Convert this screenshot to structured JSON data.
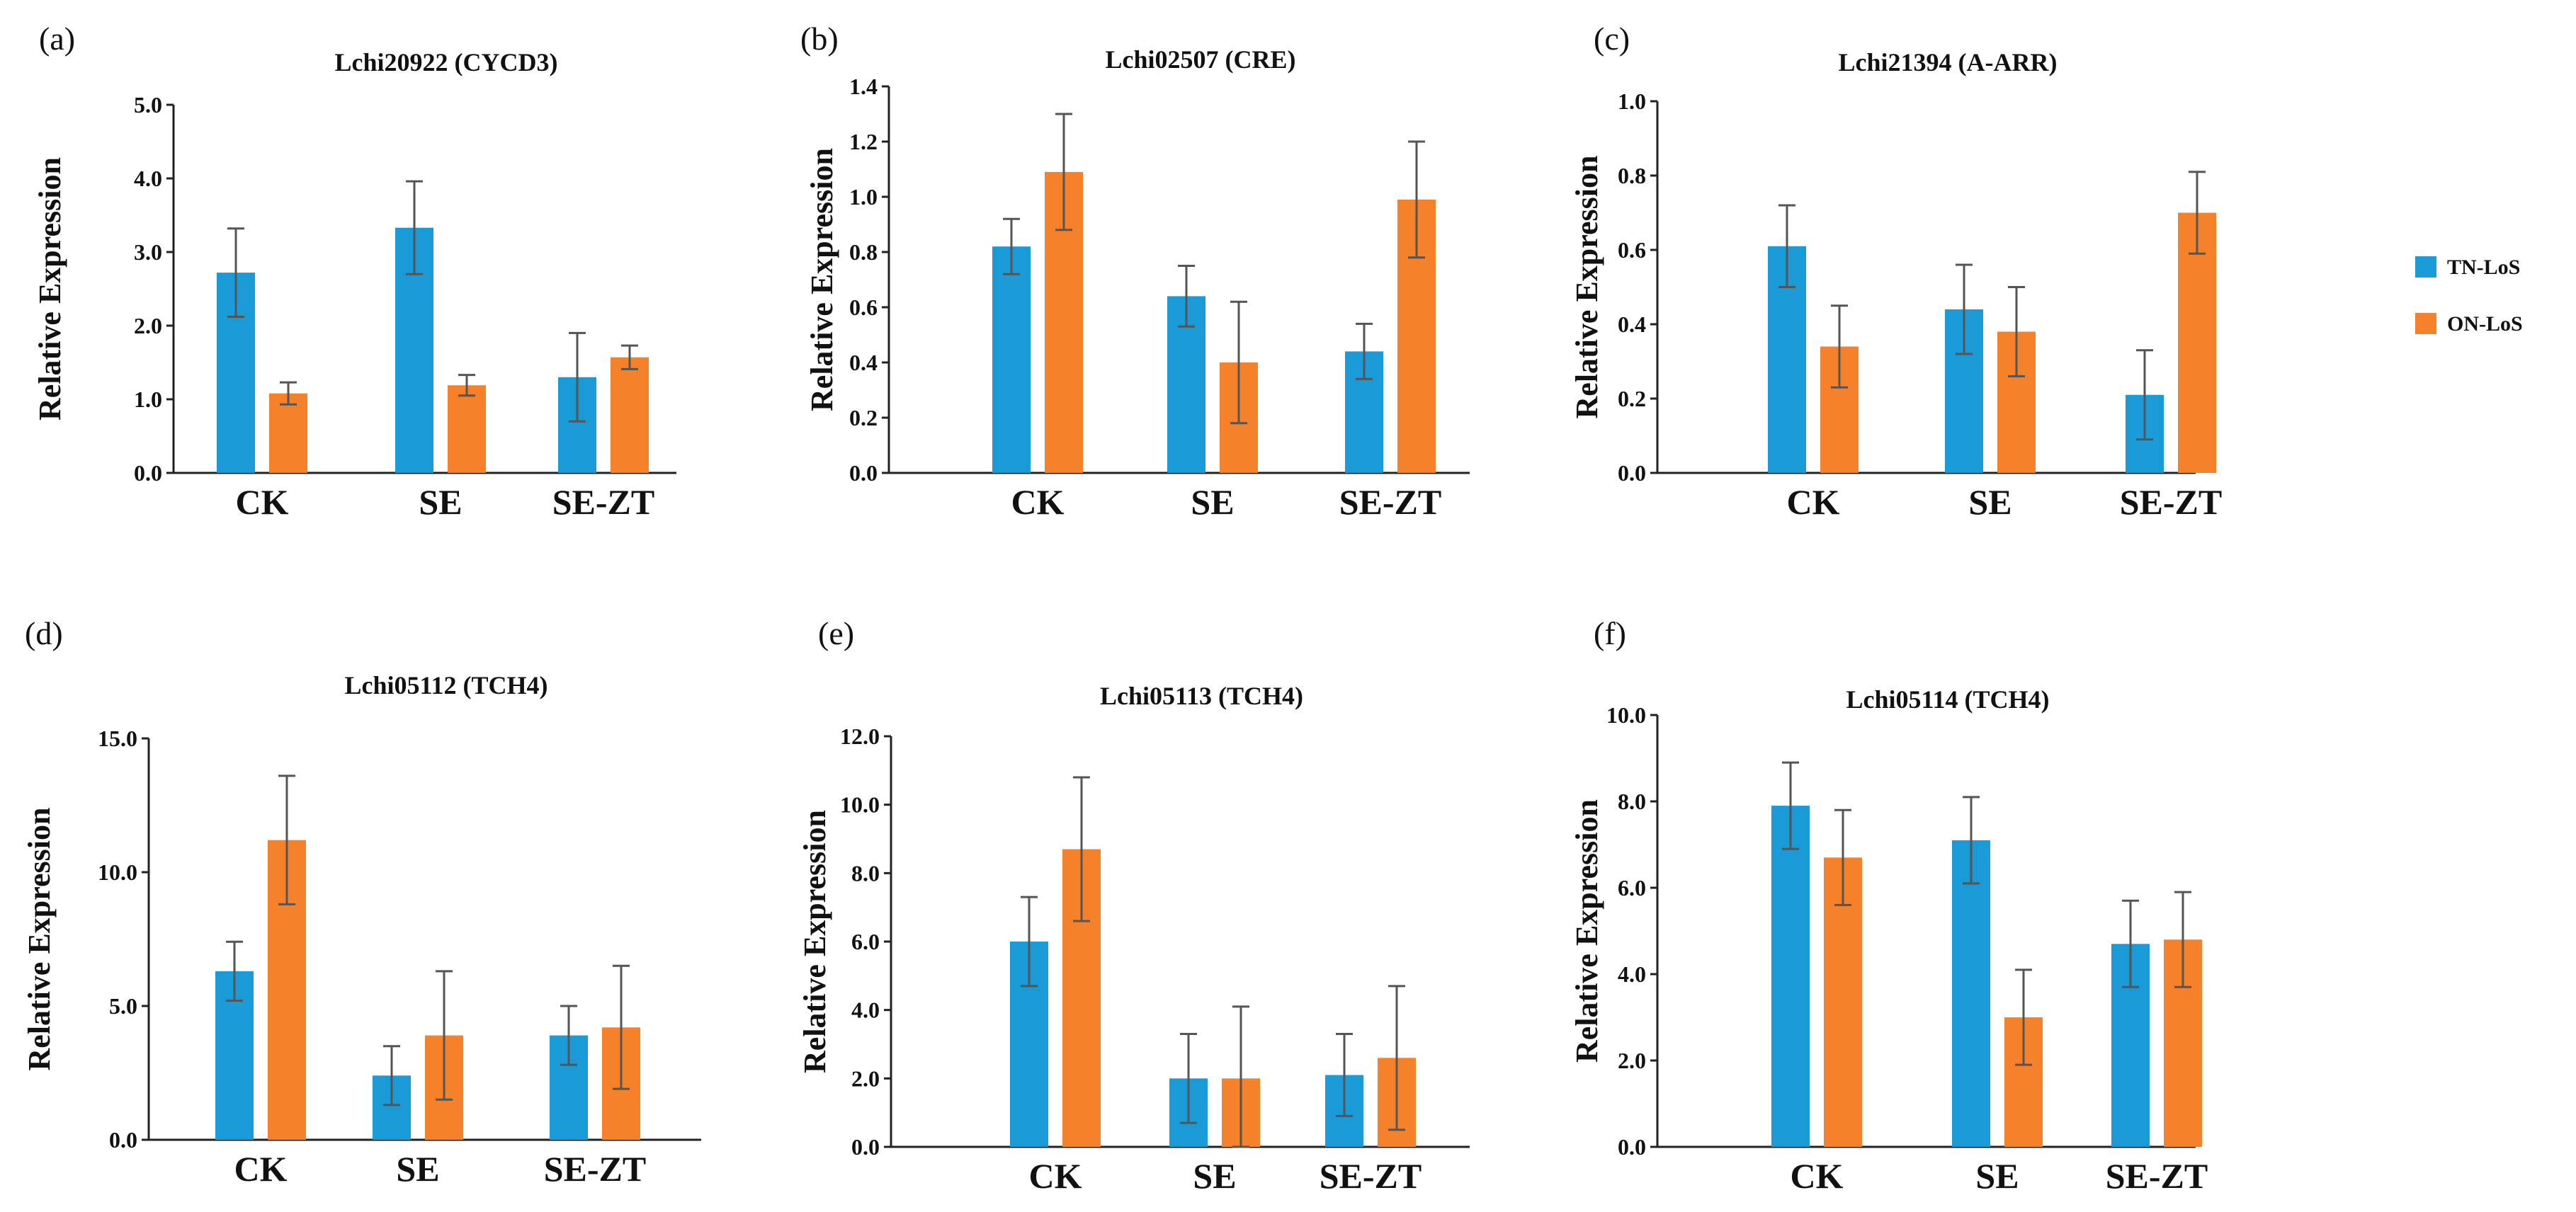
{
  "legend": {
    "items": [
      {
        "label": "TN-LoS",
        "color": "#1a9bd8"
      },
      {
        "label": "ON-LoS",
        "color": "#f5822a"
      }
    ]
  },
  "chart_data": [
    {
      "panel": "(a)",
      "type": "bar",
      "title": "Lchi20922 (CYCD3)",
      "ylabel": "Relative Expression",
      "categories": [
        "CK",
        "SE",
        "SE-ZT"
      ],
      "yticks": [
        "0.0",
        "1.0",
        "2.0",
        "3.0",
        "4.0",
        "5.0"
      ],
      "ylim": [
        0,
        5
      ],
      "series": [
        {
          "name": "TN-LoS",
          "values": [
            2.72,
            3.33,
            1.3
          ],
          "errors": [
            0.6,
            0.63,
            0.6
          ]
        },
        {
          "name": "ON-LoS",
          "values": [
            1.08,
            1.19,
            1.57
          ],
          "errors": [
            0.15,
            0.14,
            0.16
          ]
        }
      ]
    },
    {
      "panel": "(b)",
      "type": "bar",
      "title": "Lchi02507 (CRE)",
      "ylabel": "Relative Expression",
      "categories": [
        "CK",
        "SE",
        "SE-ZT"
      ],
      "yticks": [
        "0.0",
        "0.2",
        "0.4",
        "0.6",
        "0.8",
        "1.0",
        "1.2",
        "1.4"
      ],
      "ylim": [
        0,
        1.4
      ],
      "series": [
        {
          "name": "TN-LoS",
          "values": [
            0.82,
            0.64,
            0.44
          ],
          "errors": [
            0.1,
            0.11,
            0.1
          ]
        },
        {
          "name": "ON-LoS",
          "values": [
            1.09,
            0.4,
            0.99
          ],
          "errors": [
            0.21,
            0.22,
            0.21
          ]
        }
      ]
    },
    {
      "panel": "(c)",
      "type": "bar",
      "title": "Lchi21394 (A-ARR)",
      "ylabel": "Relative Expression",
      "categories": [
        "CK",
        "SE",
        "SE-ZT"
      ],
      "yticks": [
        "0.0",
        "0.2",
        "0.4",
        "0.6",
        "0.8",
        "1.0"
      ],
      "ylim": [
        0,
        1.0
      ],
      "series": [
        {
          "name": "TN-LoS",
          "values": [
            0.61,
            0.44,
            0.21
          ],
          "errors": [
            0.11,
            0.12,
            0.12
          ]
        },
        {
          "name": "ON-LoS",
          "values": [
            0.34,
            0.38,
            0.7
          ],
          "errors": [
            0.11,
            0.12,
            0.11
          ]
        }
      ]
    },
    {
      "panel": "(d)",
      "type": "bar",
      "title": "Lchi05112 (TCH4)",
      "ylabel": "Relative Expression",
      "categories": [
        "CK",
        "SE",
        "SE-ZT"
      ],
      "yticks": [
        "0.0",
        "5.0",
        "10.0",
        "15.0"
      ],
      "ylim": [
        0,
        15
      ],
      "series": [
        {
          "name": "TN-LoS",
          "values": [
            6.3,
            2.4,
            3.9
          ],
          "errors": [
            1.1,
            1.1,
            1.1
          ]
        },
        {
          "name": "ON-LoS",
          "values": [
            11.2,
            3.9,
            4.2
          ],
          "errors": [
            2.4,
            2.4,
            2.3
          ]
        }
      ]
    },
    {
      "panel": "(e)",
      "type": "bar",
      "title": "Lchi05113 (TCH4)",
      "ylabel": "Relative Expression",
      "categories": [
        "CK",
        "SE",
        "SE-ZT"
      ],
      "yticks": [
        "0.0",
        "2.0",
        "4.0",
        "6.0",
        "8.0",
        "10.0",
        "12.0"
      ],
      "ylim": [
        0,
        12
      ],
      "series": [
        {
          "name": "TN-LoS",
          "values": [
            6.0,
            2.0,
            2.1
          ],
          "errors": [
            1.3,
            1.3,
            1.2
          ]
        },
        {
          "name": "ON-LoS",
          "values": [
            8.7,
            2.0,
            2.6
          ],
          "errors": [
            2.1,
            2.1,
            2.1
          ]
        }
      ]
    },
    {
      "panel": "(f)",
      "type": "bar",
      "title": "Lchi05114 (TCH4)",
      "ylabel": "Relative Expression",
      "categories": [
        "CK",
        "SE",
        "SE-ZT"
      ],
      "yticks": [
        "0.0",
        "2.0",
        "4.0",
        "6.0",
        "8.0",
        "10.0"
      ],
      "ylim": [
        0,
        10
      ],
      "series": [
        {
          "name": "TN-LoS",
          "values": [
            7.9,
            7.1,
            4.7
          ],
          "errors": [
            1.0,
            1.0,
            1.0
          ]
        },
        {
          "name": "ON-LoS",
          "values": [
            6.7,
            3.0,
            4.8
          ],
          "errors": [
            1.1,
            1.1,
            1.1
          ]
        }
      ]
    }
  ]
}
